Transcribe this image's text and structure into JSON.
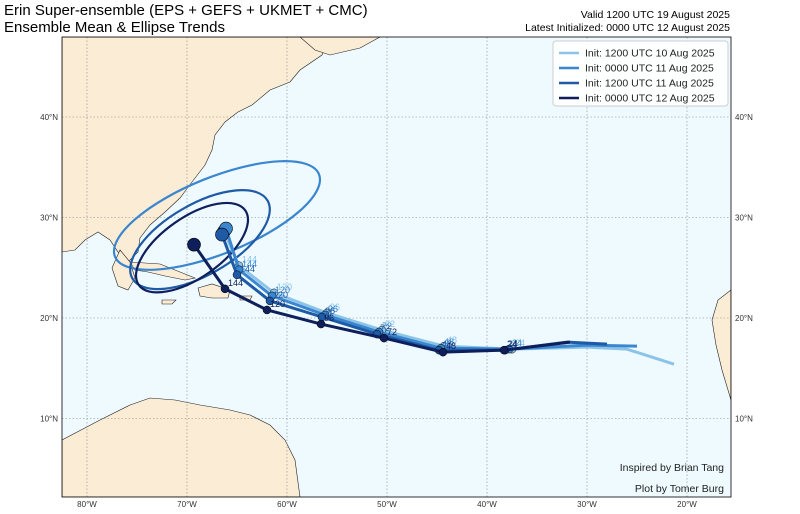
{
  "header": {
    "title": "Erin Super-ensemble (EPS + GEFS + UKMET + CMC)",
    "subtitle": "Ensemble Mean & Ellipse Trends",
    "valid": "Valid 1200 UTC 19 August 2025",
    "initialized": "Latest Initialized: 0000 UTC 12 August 2025"
  },
  "axes": {
    "lon_ticks": [
      {
        "value": -80,
        "label": "80°W"
      },
      {
        "value": -70,
        "label": "70°W"
      },
      {
        "value": -60,
        "label": "60°W"
      },
      {
        "value": -50,
        "label": "50°W"
      },
      {
        "value": -40,
        "label": "40°W"
      },
      {
        "value": -30,
        "label": "30°W"
      },
      {
        "value": -20,
        "label": "20°W"
      }
    ],
    "lat_ticks": [
      {
        "value": 40,
        "label": "40°N"
      },
      {
        "value": 30,
        "label": "30°N"
      },
      {
        "value": 20,
        "label": "20°N"
      },
      {
        "value": 10,
        "label": "10°N"
      }
    ]
  },
  "tracks": [
    {
      "name": "Init: 1200 UTC 10 Aug 2025",
      "color": "#8cc4e8",
      "points": [
        {
          "lon": -21.3,
          "lat": 15.4
        },
        {
          "lon": -26,
          "lat": 16.9
        },
        {
          "lon": -30,
          "lat": 17.1
        },
        {
          "lon": -37.5,
          "lat": 16.9,
          "hour": 24
        },
        {
          "lon": -44.3,
          "lat": 17.2,
          "hour": 48
        },
        {
          "lon": -50.5,
          "lat": 18.8,
          "hour": 72
        },
        {
          "lon": -56,
          "lat": 20.5,
          "hour": 96
        },
        {
          "lon": -61.3,
          "lat": 22.5,
          "hour": 120
        },
        {
          "lon": -64.8,
          "lat": 25.2,
          "hour": 144
        },
        {
          "lon": -66.3,
          "lat": 28.6
        }
      ]
    },
    {
      "name": "Init: 0000 UTC 11 Aug 2025",
      "color": "#3a86cf",
      "points": [
        {
          "lon": -25,
          "lat": 17.2
        },
        {
          "lon": -30,
          "lat": 17.3
        },
        {
          "lon": -37.8,
          "lat": 16.9,
          "hour": 24
        },
        {
          "lon": -44.6,
          "lat": 17.0,
          "hour": 48
        },
        {
          "lon": -50.8,
          "lat": 18.6,
          "hour": 72
        },
        {
          "lon": -56.2,
          "lat": 20.3,
          "hour": 96
        },
        {
          "lon": -61.5,
          "lat": 22.2,
          "hour": 120
        },
        {
          "lon": -64.8,
          "lat": 24.8,
          "hour": 144
        },
        {
          "lon": -66.1,
          "lat": 28.9
        }
      ],
      "ellipse": {
        "lon": -67.0,
        "lat": 30.2,
        "a": 11,
        "b": 3.8,
        "angle": 22
      }
    },
    {
      "name": "Init: 1200 UTC 11 Aug 2025",
      "color": "#1f5aa6",
      "points": [
        {
          "lon": -28,
          "lat": 17.4
        },
        {
          "lon": -32,
          "lat": 17.6
        },
        {
          "lon": -38.2,
          "lat": 16.8,
          "hour": 24
        },
        {
          "lon": -44.8,
          "lat": 16.8,
          "hour": 48
        },
        {
          "lon": -51,
          "lat": 18.4,
          "hour": 72
        },
        {
          "lon": -56.5,
          "lat": 20.1,
          "hour": 96
        },
        {
          "lon": -61.7,
          "lat": 21.7,
          "hour": 120
        },
        {
          "lon": -65.0,
          "lat": 24.3,
          "hour": 144
        },
        {
          "lon": -66.5,
          "lat": 28.3
        }
      ],
      "ellipse": {
        "lon": -68.7,
        "lat": 27.8,
        "a": 7.8,
        "b": 3.5,
        "angle": 30
      }
    },
    {
      "name": "Init: 0000 UTC 12 Aug 2025",
      "color": "#0e1f5b",
      "points": [
        {
          "lon": -31.7,
          "lat": 17.6
        },
        {
          "lon": -38.3,
          "lat": 16.8,
          "hour": 24
        },
        {
          "lon": -44.4,
          "lat": 16.6,
          "hour": 48
        },
        {
          "lon": -50.3,
          "lat": 18.0,
          "hour": 72
        },
        {
          "lon": -56.6,
          "lat": 19.4,
          "hour": 96
        },
        {
          "lon": -62.0,
          "lat": 20.8,
          "hour": 120
        },
        {
          "lon": -66.2,
          "lat": 22.9,
          "hour": 144
        },
        {
          "lon": -69.3,
          "lat": 27.3
        }
      ],
      "ellipse": {
        "lon": -69.5,
        "lat": 27.0,
        "a": 6.5,
        "b": 3.0,
        "angle": 35
      }
    }
  ],
  "credits": {
    "inspired": "Inspired by Brian Tang",
    "plot": "Plot by Tomer Burg"
  }
}
